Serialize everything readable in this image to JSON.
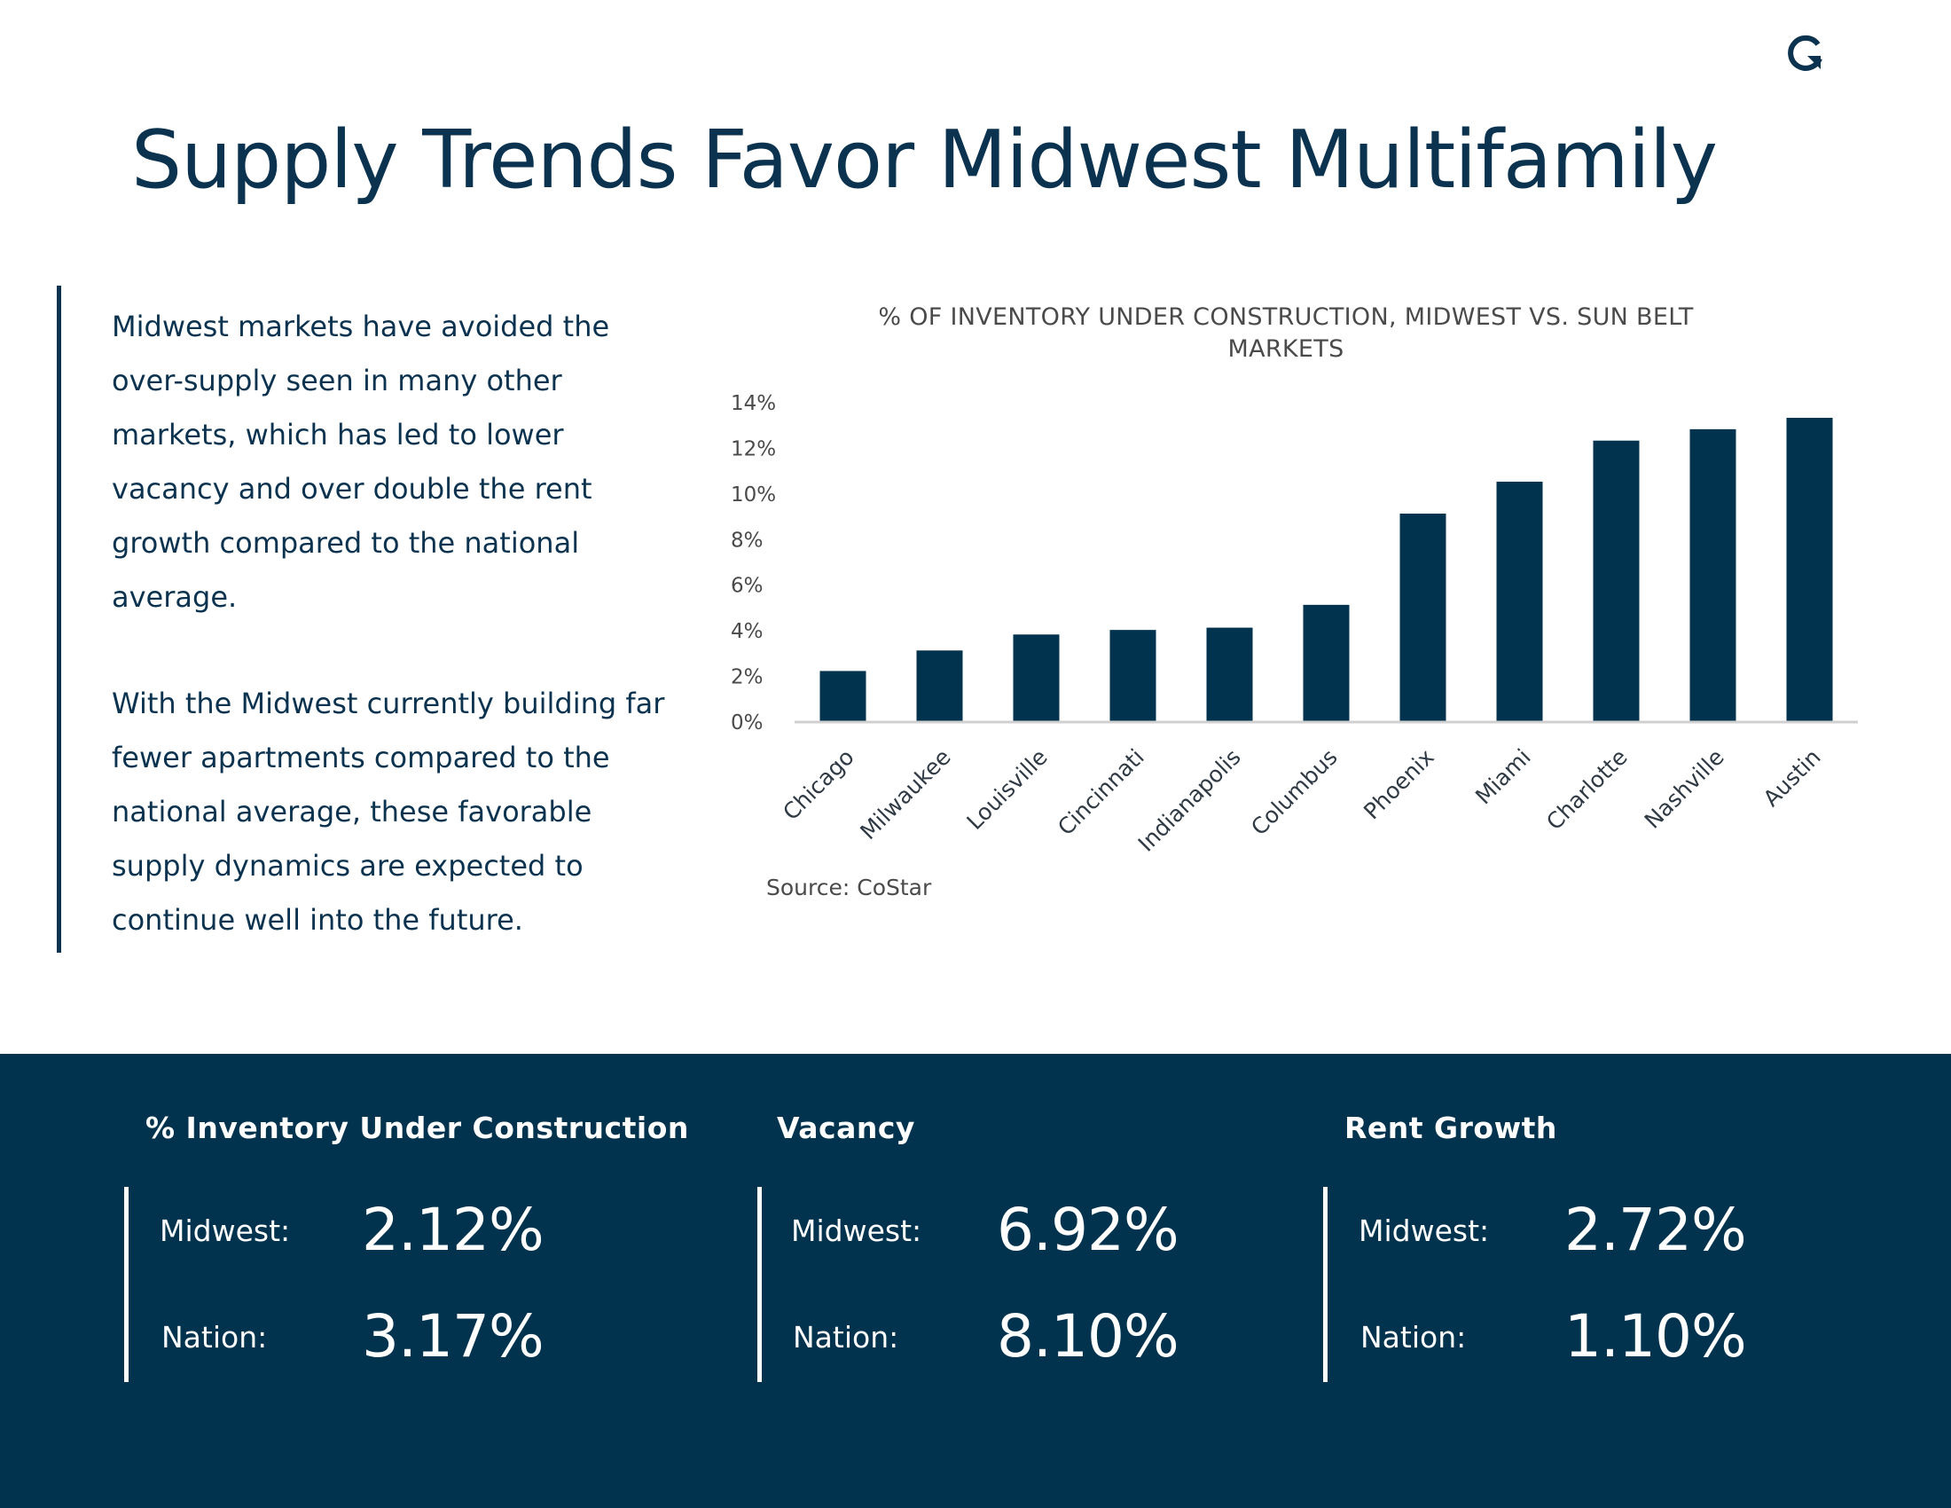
{
  "page": {
    "title": "Supply Trends Favor Midwest Multifamily",
    "paragraphs": [
      "Midwest markets have avoided the over-supply seen in many other markets, which has led to lower vacancy and over double the rent growth compared to the national average.",
      "With the Midwest currently building far fewer apartments compared to the national average, these favorable supply dynamics are expected to continue well into the future."
    ],
    "source": "Source: CoStar"
  },
  "colors": {
    "navy": "#0b3350",
    "band": "#02334e",
    "bar": "#02334e",
    "axis": "#d0d0d0",
    "tick_text": "#4a4a4a"
  },
  "chart_data": {
    "type": "bar",
    "title": "% OF INVENTORY UNDER CONSTRUCTION, MIDWEST VS. SUN BELT MARKETS",
    "categories": [
      "Chicago",
      "Milwaukee",
      "Louisville",
      "Cincinnati",
      "Indianapolis",
      "Columbus",
      "Phoenix",
      "Miami",
      "Charlotte",
      "Nashville",
      "Austin"
    ],
    "values": [
      2.2,
      3.1,
      3.8,
      4.0,
      4.1,
      5.1,
      9.1,
      10.5,
      12.3,
      12.8,
      13.3
    ],
    "ylim": [
      0,
      14
    ],
    "yticks": [
      0,
      2,
      4,
      6,
      8,
      10,
      12,
      14
    ],
    "ytick_labels": [
      "0%",
      "2%",
      "4%",
      "6%",
      "8%",
      "10%",
      "12%",
      "14%"
    ],
    "xlabel": "",
    "ylabel": "",
    "grid": false
  },
  "stats": [
    {
      "title": "% Inventory Under Construction",
      "rows": [
        {
          "label": "Midwest:",
          "value": "2.12%"
        },
        {
          "label": "Nation:",
          "value": "3.17%"
        }
      ]
    },
    {
      "title": "Vacancy",
      "rows": [
        {
          "label": "Midwest:",
          "value": "6.92%"
        },
        {
          "label": "Nation:",
          "value": "8.10%"
        }
      ]
    },
    {
      "title": "Rent Growth",
      "rows": [
        {
          "label": "Midwest:",
          "value": "2.72%"
        },
        {
          "label": "Nation:",
          "value": "1.10%"
        }
      ]
    }
  ]
}
